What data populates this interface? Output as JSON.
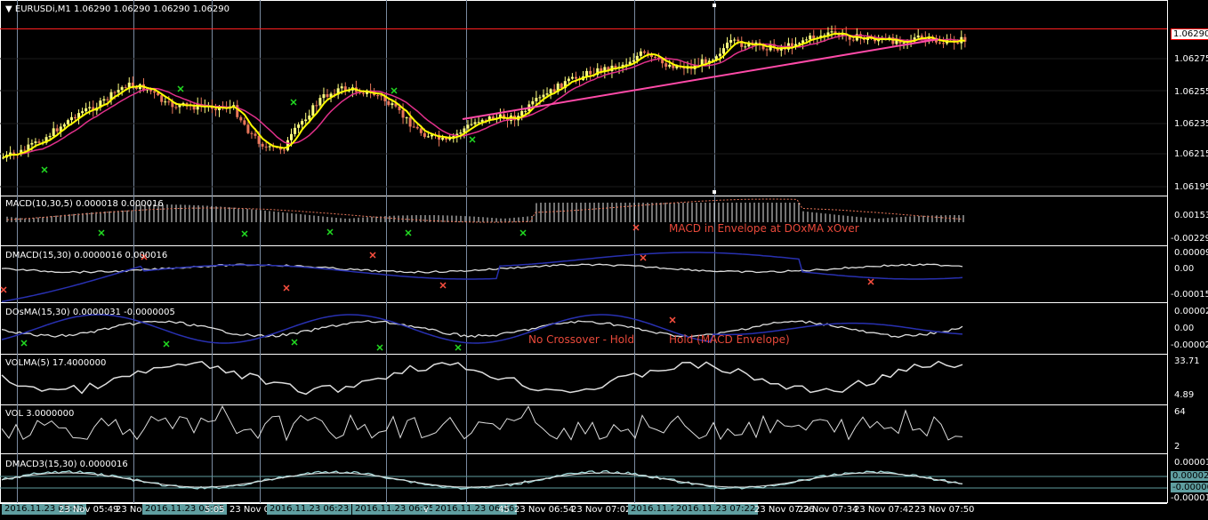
{
  "main_pane": {
    "title_prefix": "EURUSDi,M1",
    "ohlc": "1.06290 1.06290 1.06290 1.06290",
    "price_labels": [
      "1.06275",
      "1.06255",
      "1.06235",
      "1.06215",
      "1.06195"
    ],
    "current_price": "1.06290",
    "current_price_color": "#ffffff",
    "current_price_bg": "#ff0000"
  },
  "panes": [
    {
      "title": "MACD(10,30,5) 0.000018 0.000016",
      "scale": [
        "0.00153",
        "-0.00229"
      ]
    },
    {
      "title": "DMACD(15,30) 0.0000016 0.000016",
      "scale": [
        "0.000096",
        "0.00",
        "-0.000153"
      ]
    },
    {
      "title": "DOsMA(15,30) 0.0000031 -0.0000005",
      "scale": [
        "0.000025",
        "0.00",
        "-0.000026"
      ]
    },
    {
      "title": "VOLMA(5) 17.4000000",
      "scale": [
        "33.71",
        "4.89"
      ]
    },
    {
      "title": "VOL 3.0000000",
      "scale": [
        "64",
        "2"
      ]
    },
    {
      "title": "DMACD3(15,30) 0.0000016",
      "scale": [
        "0.000016",
        "0.00002",
        "-0.00000",
        "-0.000016"
      ]
    }
  ],
  "annotations": {
    "macd_envelope": "MACD in Envelope at  DOxMA xOver",
    "no_crossover": "No Crossover - Hold",
    "hold_envelope": "Hold (MACD Envelope)"
  },
  "time_axis": {
    "labels": [
      {
        "text": "2016.11.23 05:43",
        "highlight": true
      },
      {
        "text": "23 Nov 05:49",
        "highlight": false
      },
      {
        "text": "23 No",
        "highlight": false
      },
      {
        "text": "2016.11.23 06:05",
        "highlight": true
      },
      {
        "text": "5:05",
        "highlight": false
      },
      {
        "text": "23 Nov 0",
        "highlight": false
      },
      {
        "text": "2016.11.23 06:23",
        "highlight": true
      },
      {
        "text": "2016.11.23 06:35",
        "highlight": true
      },
      {
        "text": "v",
        "highlight": false
      },
      {
        "text": "2016.11.23 06:46",
        "highlight": true
      },
      {
        "text": "45",
        "highlight": false
      },
      {
        "text": "23 Nov 06:54",
        "highlight": false
      },
      {
        "text": "23 Nov 07:02",
        "highlight": false
      },
      {
        "text": "2016.11.23 (",
        "highlight": true
      },
      {
        "text": "2016.11.23 07:22",
        "highlight": true
      },
      {
        "text": "23 Nov 07:26",
        "highlight": false
      },
      {
        "text": "23 Nov 07:34",
        "highlight": false
      },
      {
        "text": "23 Nov 07:42",
        "highlight": false
      },
      {
        "text": "23 Nov 07:50",
        "highlight": false
      }
    ]
  },
  "colors": {
    "bull_candle": "#ffff80",
    "bear_candle": "#e8765a",
    "fast_ma": "#ffff00",
    "slow_ma": "#e0308a",
    "trend_line": "#ff4aa8",
    "signal_buy": "#22dd22",
    "signal_sell": "#ff5040",
    "line_white": "#dddddd",
    "line_blue": "#2830b0",
    "cyan": "#5f9ea0",
    "grid": "#7a8aa0",
    "price_line": "#ff2020"
  }
}
